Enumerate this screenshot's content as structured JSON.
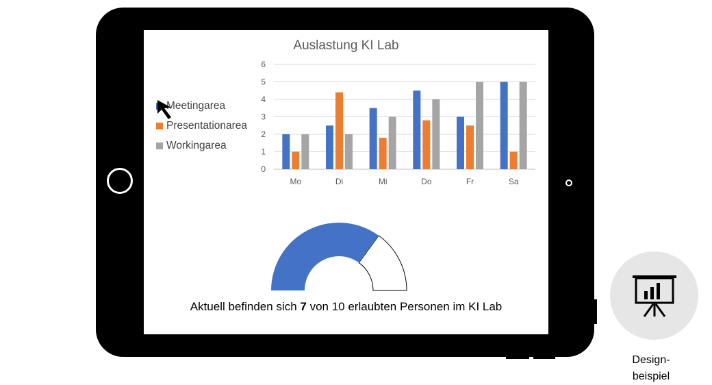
{
  "chart_data": {
    "type": "bar",
    "title": "Auslastung KI Lab",
    "categories": [
      "Mo",
      "Di",
      "Mi",
      "Do",
      "Fr",
      "Sa"
    ],
    "series": [
      {
        "name": "Meetingarea",
        "color": "#4472c4",
        "values": [
          2,
          2.5,
          3.5,
          4.5,
          3,
          5
        ]
      },
      {
        "name": "Presentationarea",
        "color": "#ed7d31",
        "values": [
          1,
          4.4,
          1.8,
          2.8,
          2.5,
          1
        ]
      },
      {
        "name": "Workingarea",
        "color": "#a5a5a5",
        "values": [
          2,
          2,
          3,
          4,
          5,
          5
        ]
      }
    ],
    "ylim": [
      0,
      6
    ],
    "yticks": [
      "0",
      "1",
      "2",
      "3",
      "4",
      "5",
      "6"
    ],
    "grid": true,
    "legend_position": "left"
  },
  "gauge": {
    "current": 7,
    "max": 10,
    "fill_color": "#4472c4"
  },
  "caption": {
    "prefix": "Aktuell befinden sich ",
    "count": "7",
    "suffix": " von 10 erlaubten Personen im KI Lab"
  },
  "badge": {
    "icon": "presentation-chart-icon",
    "label_line1": "Design-",
    "label_line2": "beispiel"
  }
}
